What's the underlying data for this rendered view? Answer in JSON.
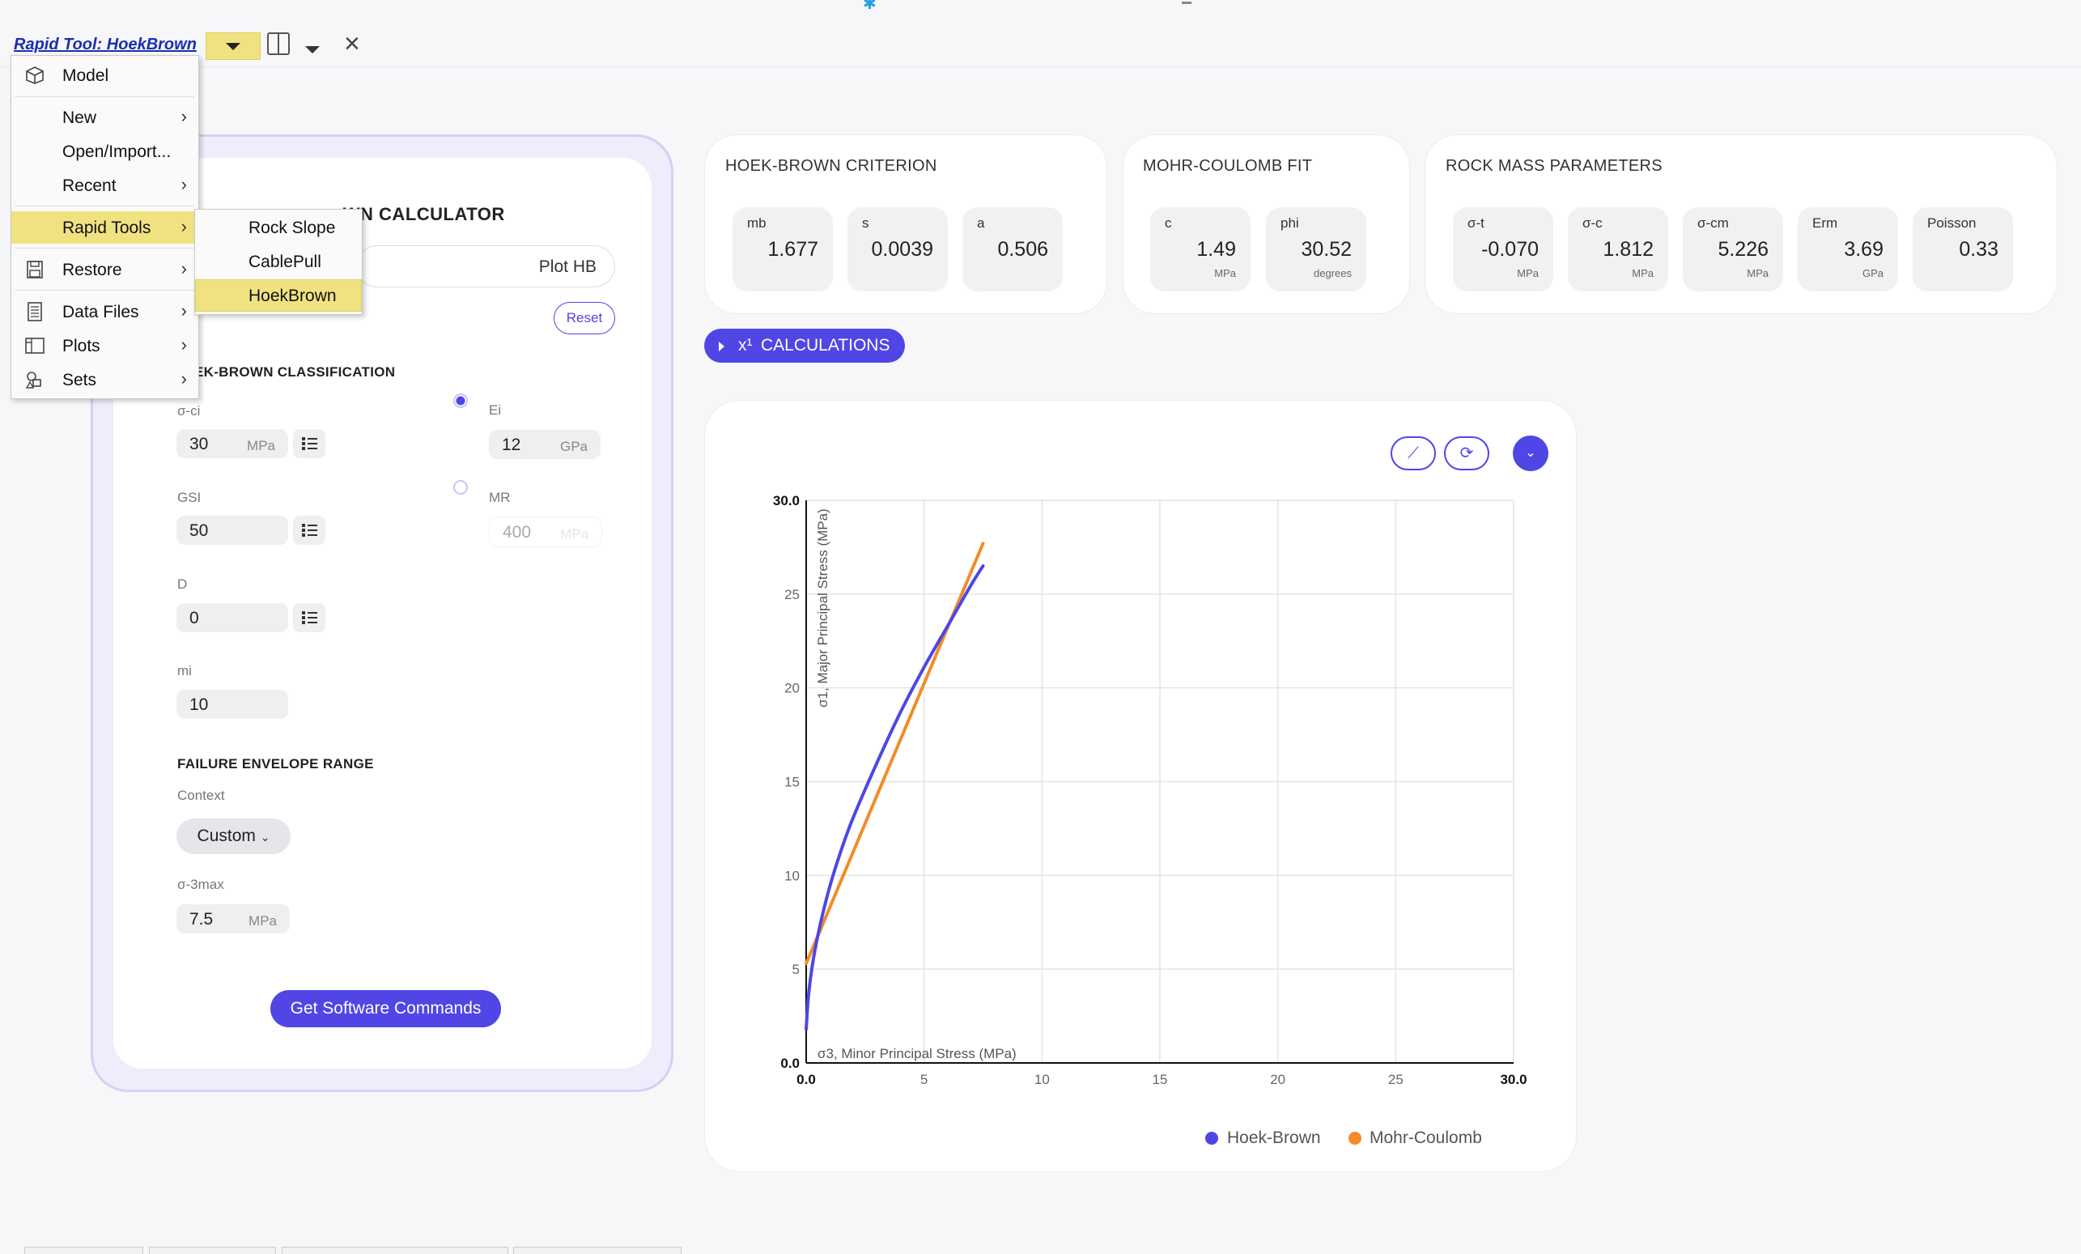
{
  "toolbar": {
    "title": "Rapid Tool: HoekBrown"
  },
  "menu": {
    "items": [
      {
        "label": "Model",
        "icon": "cube-icon",
        "arrow": ""
      },
      {
        "label": "New",
        "icon": "",
        "arrow": ">"
      },
      {
        "label": "Open/Import...",
        "icon": "",
        "arrow": ""
      },
      {
        "label": "Recent",
        "icon": "",
        "arrow": ">"
      },
      {
        "label": "Rapid Tools",
        "icon": "",
        "arrow": ">"
      },
      {
        "label": "Restore",
        "icon": "floppy-disk-icon",
        "arrow": ">"
      },
      {
        "label": "Data Files",
        "icon": "document-icon",
        "arrow": ">"
      },
      {
        "label": "Plots",
        "icon": "panel-icon",
        "arrow": ">"
      },
      {
        "label": "Sets",
        "icon": "shapes-icon",
        "arrow": ">"
      }
    ],
    "submenu": [
      "Rock Slope",
      "CablePull",
      "HoekBrown"
    ]
  },
  "calculator": {
    "title": "HOEK-BROWN CALCULATOR",
    "title_visible": "WN CALCULATOR",
    "plot_value": "Plot HB",
    "reset_label": "Reset",
    "classification_title": "EK-BROWN CLASSIFICATION",
    "sigma_ci": {
      "label": "σ-ci",
      "value": "30",
      "unit": "MPa"
    },
    "ei": {
      "label": "Ei",
      "value": "12",
      "unit": "GPa"
    },
    "gsi": {
      "label": "GSI",
      "value": "50"
    },
    "mr": {
      "label": "MR",
      "value": "400",
      "unit": "MPa"
    },
    "d": {
      "label": "D",
      "value": "0"
    },
    "mi": {
      "label": "mi",
      "value": "10"
    },
    "envelope_title": "FAILURE ENVELOPE RANGE",
    "context_label": "Context",
    "context_value": "Custom",
    "sigma3max": {
      "label": "σ-3max",
      "value": "7.5",
      "unit": "MPa"
    },
    "commands_label": "Get Software Commands"
  },
  "hoek_brown": {
    "title": "HOEK-BROWN CRITERION",
    "cells": [
      {
        "label": "mb",
        "value": "1.677",
        "unit": ""
      },
      {
        "label": "s",
        "value": "0.0039",
        "unit": ""
      },
      {
        "label": "a",
        "value": "0.506",
        "unit": ""
      }
    ]
  },
  "mohr_coulomb": {
    "title": "MOHR-COULOMB FIT",
    "cells": [
      {
        "label": "c",
        "value": "1.49",
        "unit": "MPa"
      },
      {
        "label": "phi",
        "value": "30.52",
        "unit": "degrees"
      }
    ]
  },
  "rock_mass": {
    "title": "ROCK MASS PARAMETERS",
    "cells": [
      {
        "label": "σ-t",
        "value": "-0.070",
        "unit": "MPa"
      },
      {
        "label": "σ-c",
        "value": "1.812",
        "unit": "MPa"
      },
      {
        "label": "σ-cm",
        "value": "5.226",
        "unit": "MPa"
      },
      {
        "label": "Erm",
        "value": "3.69",
        "unit": "GPa"
      },
      {
        "label": "Poisson",
        "value": "0.33",
        "unit": ""
      }
    ]
  },
  "calculations_label": "CALCULATIONS",
  "calculations_prefix": "x¹",
  "colors": {
    "accent": "#4f46e5",
    "hoek_brown": "#4f46e5",
    "mohr_coulomb": "#f28c28",
    "menu_highlight": "#f1e281"
  },
  "chart_data": {
    "type": "line",
    "xlabel": "σ3, Minor Principal Stress (MPa)",
    "ylabel": "σ1, Major Principal Stress (MPa)",
    "xlim": [
      0,
      30
    ],
    "ylim": [
      0,
      30
    ],
    "xticks": [
      "0.0",
      "5",
      "10",
      "15",
      "20",
      "25",
      "30.0"
    ],
    "yticks": [
      "0.0",
      "5",
      "10",
      "15",
      "20",
      "25",
      "30.0"
    ],
    "grid": true,
    "legend_position": "bottom",
    "series": [
      {
        "name": "Hoek-Brown",
        "color": "#4f46e5",
        "x": [
          0.0,
          0.1,
          0.3,
          0.6,
          1.0,
          1.5,
          2.0,
          3.0,
          4.0,
          5.0,
          6.0,
          7.0,
          7.5
        ],
        "y": [
          1.8,
          3.6,
          5.5,
          7.4,
          9.4,
          11.4,
          13.1,
          16.0,
          18.7,
          21.1,
          23.3,
          25.5,
          26.5
        ]
      },
      {
        "name": "Mohr-Coulomb",
        "color": "#f28c28",
        "x": [
          0.0,
          7.5
        ],
        "y": [
          5.3,
          27.7
        ]
      }
    ]
  }
}
